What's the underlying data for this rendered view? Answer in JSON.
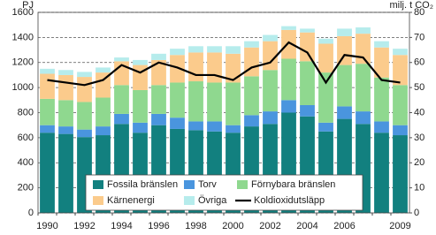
{
  "chart_data": {
    "type": "bar",
    "stacked": true,
    "y_label": "PJ",
    "y2_label": "milj. t CO₂",
    "categories": [
      "1990",
      null,
      "1992",
      null,
      "1994",
      null,
      "1996",
      null,
      "1998",
      null,
      "2000",
      null,
      "2002",
      null,
      "2004",
      null,
      "2006",
      null,
      null,
      "2009"
    ],
    "series": [
      {
        "name": "Fossila bränslen",
        "color": "#12807f",
        "values": [
          640,
          630,
          605,
          620,
          710,
          640,
          700,
          670,
          660,
          650,
          640,
          690,
          710,
          800,
          770,
          650,
          750,
          710,
          640,
          620
        ]
      },
      {
        "name": "Torv",
        "color": "#4a95de",
        "values": [
          60,
          60,
          60,
          70,
          80,
          80,
          90,
          90,
          70,
          80,
          60,
          90,
          100,
          100,
          90,
          70,
          100,
          100,
          90,
          80
        ]
      },
      {
        "name": "Förnybara bränslen",
        "color": "#8fd88f",
        "values": [
          210,
          210,
          220,
          230,
          230,
          260,
          230,
          280,
          320,
          310,
          340,
          310,
          330,
          330,
          350,
          400,
          330,
          380,
          350,
          320
        ]
      },
      {
        "name": "Kärnenergi",
        "color": "#fbcb8c",
        "values": [
          200,
          200,
          200,
          200,
          190,
          200,
          200,
          220,
          230,
          240,
          230,
          230,
          230,
          230,
          230,
          230,
          230,
          240,
          240,
          240
        ]
      },
      {
        "name": "Övriga",
        "color": "#b6ecec",
        "values": [
          40,
          40,
          40,
          40,
          30,
          40,
          50,
          50,
          50,
          50,
          60,
          50,
          50,
          30,
          30,
          40,
          60,
          50,
          50,
          50
        ]
      },
      {
        "name": "Koldioxidutsläpp",
        "color": "#000000",
        "type": "line",
        "axis": "y2",
        "values": [
          53,
          52,
          51,
          53,
          59,
          56,
          60,
          58,
          55,
          55,
          53,
          58,
          60,
          68,
          64,
          52,
          63,
          62,
          53,
          52
        ]
      }
    ],
    "ylim": [
      0,
      1600
    ],
    "yticks": [
      0,
      200,
      400,
      600,
      800,
      1000,
      1200,
      1400,
      1600
    ],
    "y2lim": [
      0,
      80
    ],
    "y2ticks": [
      0,
      10,
      20,
      30,
      40,
      50,
      60,
      70,
      80
    ],
    "grid": true
  }
}
